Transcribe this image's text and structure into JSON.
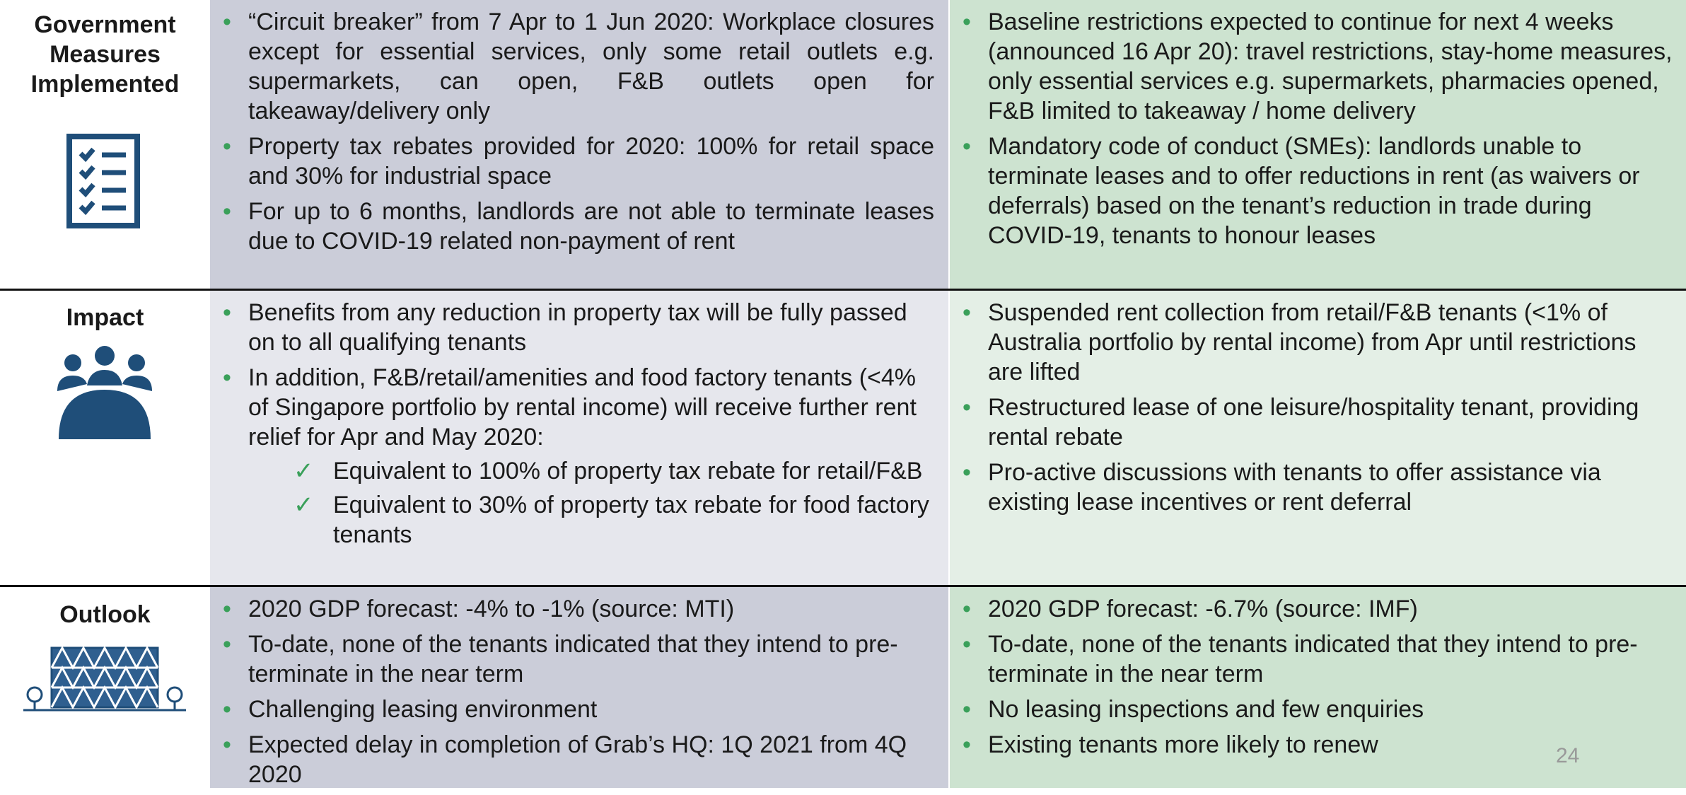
{
  "rows": [
    {
      "label": "Government Measures Implemented",
      "left": [
        {
          "text": "“Circuit breaker” from 7 Apr to 1 Jun 2020: Workplace closures except for essential services, only some retail outlets e.g. supermarkets, can open, F&B outlets open for takeaway/delivery only"
        },
        {
          "text": "Property tax rebates provided for 2020: 100% for retail space and 30% for industrial space"
        },
        {
          "text": "For up to 6 months, landlords are not able to terminate leases due to COVID-19 related non-payment of rent"
        }
      ],
      "right": [
        {
          "text": "Baseline restrictions expected to continue for next 4 weeks (announced 16 Apr 20): travel restrictions, stay-home measures, only essential services e.g. supermarkets, pharmacies opened, F&B limited to takeaway / home delivery"
        },
        {
          "text": "Mandatory code of conduct (SMEs): landlords unable to terminate leases and to offer reductions in rent (as waivers or deferrals) based on the tenant’s reduction in trade during COVID-19, tenants to honour leases"
        }
      ]
    },
    {
      "label": "Impact",
      "left": [
        {
          "text": "Benefits from any reduction in property tax will be fully passed on to all qualifying tenants"
        },
        {
          "text": "In addition, F&B/retail/amenities and food factory tenants (<4% of Singapore portfolio by rental income) will receive further rent relief for Apr and May 2020:",
          "sub_items": [
            "Equivalent to 100% of property tax rebate for retail/F&B",
            "Equivalent to 30% of property tax  rebate for food factory tenants"
          ]
        }
      ],
      "right": [
        {
          "text": "Suspended rent collection from retail/F&B tenants (<1% of Australia portfolio by rental income) from Apr until restrictions are lifted"
        },
        {
          "text": "Restructured lease of one leisure/hospitality tenant, providing rental rebate"
        },
        {
          "text": "Pro-active discussions with tenants to offer assistance via existing lease incentives or rent deferral"
        }
      ]
    },
    {
      "label": "Outlook",
      "left": [
        {
          "text": "2020 GDP forecast: -4% to -1% (source: MTI)"
        },
        {
          "text": "To-date, none of the tenants indicated that they intend to pre-terminate in the near term"
        },
        {
          "text": "Challenging leasing environment"
        },
        {
          "text": "Expected delay in completion of Grab’s HQ: 1Q 2021 from 4Q 2020"
        }
      ],
      "right": [
        {
          "text": "2020 GDP forecast: -6.7% (source: IMF)"
        },
        {
          "text": "To-date, none of the tenants indicated that they intend to pre-terminate in the near term"
        },
        {
          "text": "No leasing inspections and few enquiries"
        },
        {
          "text": "Existing tenants more likely to renew"
        }
      ]
    }
  ],
  "page_number": "24"
}
